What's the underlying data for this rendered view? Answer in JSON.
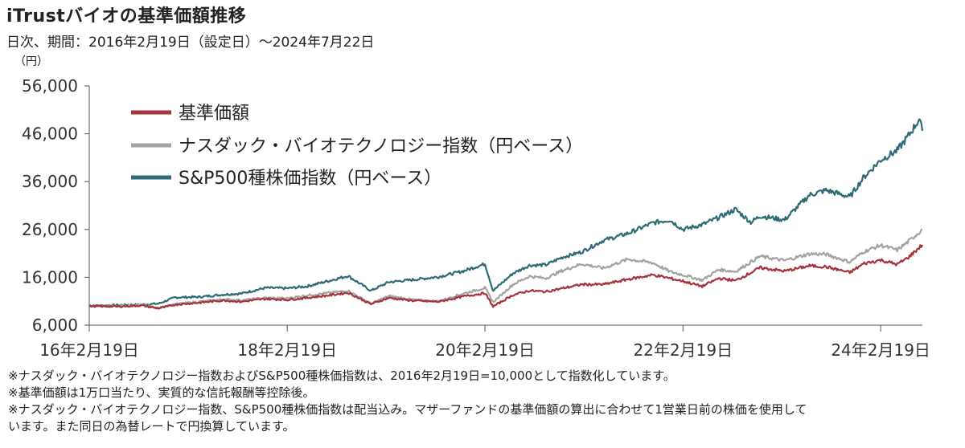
{
  "header": {
    "title": "iTrustバイオの基準価額推移",
    "subtitle": "日次、期間：2016年2月19日（設定日）～2024年7月22日",
    "unit": "（円）"
  },
  "chart_data": {
    "type": "line",
    "x_tick_labels": [
      "16年2月19日",
      "18年2月19日",
      "20年2月19日",
      "22年2月19日",
      "24年2月19日"
    ],
    "x_ticks": [
      "2016-02-19",
      "2018-02-19",
      "2020-02-19",
      "2022-02-19",
      "2024-02-19"
    ],
    "x_range": [
      "2016-02-19",
      "2024-07-22"
    ],
    "ylim": [
      6000,
      56000
    ],
    "y_ticks": [
      6000,
      16000,
      26000,
      36000,
      46000,
      56000
    ],
    "y_tick_labels": [
      "6,000",
      "16,000",
      "26,000",
      "36,000",
      "46,000",
      "56,000"
    ],
    "legend_position": "top-left",
    "grid": false,
    "series": [
      {
        "name": "基準価額",
        "color": "#a5333b",
        "points": [
          [
            "2016-02-19",
            10000
          ],
          [
            "2016-06-01",
            9900
          ],
          [
            "2016-09-01",
            10100
          ],
          [
            "2016-11-01",
            9500
          ],
          [
            "2017-01-01",
            10300
          ],
          [
            "2017-04-01",
            10700
          ],
          [
            "2017-07-01",
            11200
          ],
          [
            "2017-09-01",
            10900
          ],
          [
            "2017-12-01",
            11500
          ],
          [
            "2018-02-19",
            11300
          ],
          [
            "2018-05-01",
            11700
          ],
          [
            "2018-08-01",
            12300
          ],
          [
            "2018-10-01",
            12800
          ],
          [
            "2018-12-25",
            10400
          ],
          [
            "2019-03-01",
            11700
          ],
          [
            "2019-06-01",
            11100
          ],
          [
            "2019-09-01",
            10900
          ],
          [
            "2019-12-01",
            12000
          ],
          [
            "2020-02-19",
            12700
          ],
          [
            "2020-03-20",
            9900
          ],
          [
            "2020-06-01",
            12300
          ],
          [
            "2020-08-01",
            13200
          ],
          [
            "2020-10-01",
            13000
          ],
          [
            "2020-12-01",
            13700
          ],
          [
            "2021-02-10",
            14500
          ],
          [
            "2021-05-01",
            14500
          ],
          [
            "2021-08-01",
            15600
          ],
          [
            "2021-11-01",
            16500
          ],
          [
            "2022-01-01",
            15800
          ],
          [
            "2022-02-19",
            15200
          ],
          [
            "2022-05-01",
            14100
          ],
          [
            "2022-07-01",
            15800
          ],
          [
            "2022-09-01",
            15300
          ],
          [
            "2022-12-01",
            18000
          ],
          [
            "2023-03-01",
            17300
          ],
          [
            "2023-06-01",
            18400
          ],
          [
            "2023-08-01",
            18200
          ],
          [
            "2023-10-28",
            17000
          ],
          [
            "2023-12-20",
            18900
          ],
          [
            "2024-02-19",
            19600
          ],
          [
            "2024-04-20",
            18700
          ],
          [
            "2024-06-01",
            20200
          ],
          [
            "2024-07-22",
            22800
          ]
        ]
      },
      {
        "name": "ナスダック・バイオテクノロジー指数（円ベース）",
        "color": "#a3a3a3",
        "points": [
          [
            "2016-02-19",
            10000
          ],
          [
            "2016-06-01",
            10000
          ],
          [
            "2016-09-01",
            10200
          ],
          [
            "2016-11-01",
            9600
          ],
          [
            "2017-01-01",
            10400
          ],
          [
            "2017-04-01",
            10900
          ],
          [
            "2017-07-01",
            11400
          ],
          [
            "2017-09-01",
            11200
          ],
          [
            "2017-12-01",
            11700
          ],
          [
            "2018-02-19",
            11600
          ],
          [
            "2018-05-01",
            12200
          ],
          [
            "2018-08-01",
            12800
          ],
          [
            "2018-10-01",
            13200
          ],
          [
            "2018-12-25",
            10500
          ],
          [
            "2019-03-01",
            12100
          ],
          [
            "2019-06-01",
            11300
          ],
          [
            "2019-09-01",
            11000
          ],
          [
            "2019-12-01",
            12600
          ],
          [
            "2020-02-19",
            13800
          ],
          [
            "2020-03-20",
            10800
          ],
          [
            "2020-06-01",
            14500
          ],
          [
            "2020-08-01",
            16200
          ],
          [
            "2020-10-01",
            15800
          ],
          [
            "2020-12-01",
            17400
          ],
          [
            "2021-02-10",
            18800
          ],
          [
            "2021-05-01",
            17900
          ],
          [
            "2021-08-01",
            19800
          ],
          [
            "2021-11-01",
            19000
          ],
          [
            "2022-01-01",
            17200
          ],
          [
            "2022-02-19",
            16500
          ],
          [
            "2022-05-01",
            15400
          ],
          [
            "2022-07-01",
            17600
          ],
          [
            "2022-09-01",
            17200
          ],
          [
            "2022-12-01",
            20400
          ],
          [
            "2023-03-01",
            19500
          ],
          [
            "2023-06-01",
            20900
          ],
          [
            "2023-08-01",
            20800
          ],
          [
            "2023-10-28",
            19200
          ],
          [
            "2023-12-20",
            21400
          ],
          [
            "2024-02-19",
            22700
          ],
          [
            "2024-04-20",
            21700
          ],
          [
            "2024-06-01",
            23500
          ],
          [
            "2024-07-22",
            26000
          ]
        ]
      },
      {
        "name": "S&P500種株価指数（円ベース）",
        "color": "#2f6b74",
        "points": [
          [
            "2016-02-19",
            10000
          ],
          [
            "2016-06-01",
            10200
          ],
          [
            "2016-09-01",
            10300
          ],
          [
            "2016-11-01",
            10500
          ],
          [
            "2017-01-01",
            11800
          ],
          [
            "2017-04-01",
            11900
          ],
          [
            "2017-07-01",
            12400
          ],
          [
            "2017-09-01",
            12600
          ],
          [
            "2017-12-01",
            13800
          ],
          [
            "2018-02-19",
            13700
          ],
          [
            "2018-05-01",
            14100
          ],
          [
            "2018-08-01",
            15400
          ],
          [
            "2018-10-01",
            16300
          ],
          [
            "2018-12-25",
            13200
          ],
          [
            "2019-03-01",
            15000
          ],
          [
            "2019-06-01",
            15500
          ],
          [
            "2019-09-01",
            16100
          ],
          [
            "2019-12-01",
            17300
          ],
          [
            "2020-02-19",
            18800
          ],
          [
            "2020-03-20",
            13200
          ],
          [
            "2020-06-01",
            16800
          ],
          [
            "2020-08-01",
            18500
          ],
          [
            "2020-10-01",
            18600
          ],
          [
            "2020-12-01",
            20200
          ],
          [
            "2021-02-10",
            21300
          ],
          [
            "2021-05-01",
            23700
          ],
          [
            "2021-08-01",
            25200
          ],
          [
            "2021-11-01",
            27400
          ],
          [
            "2022-01-01",
            28000
          ],
          [
            "2022-02-19",
            26000
          ],
          [
            "2022-05-01",
            27000
          ],
          [
            "2022-07-01",
            28500
          ],
          [
            "2022-09-01",
            30200
          ],
          [
            "2022-10-28",
            27500
          ],
          [
            "2022-12-01",
            28800
          ],
          [
            "2023-03-01",
            28000
          ],
          [
            "2023-06-01",
            33200
          ],
          [
            "2023-08-01",
            34200
          ],
          [
            "2023-10-28",
            32800
          ],
          [
            "2023-12-20",
            37000
          ],
          [
            "2024-02-19",
            40500
          ],
          [
            "2024-04-20",
            42500
          ],
          [
            "2024-06-01",
            45600
          ],
          [
            "2024-07-10",
            49000
          ],
          [
            "2024-07-22",
            46600
          ]
        ]
      }
    ]
  },
  "notes": [
    "※ナスダック・バイオテクノロジー指数およびS&P500種株価指数は、2016年2月19日=10,000として指数化しています。",
    "※基準価額は1万口当たり、実質的な信託報酬等控除後。",
    "※ナスダック・バイオテクノロジー指数、S&P500種株価指数は配当込み。マザーファンドの基準価額の算出に合わせて1営業日前の株価を使用して",
    "います。また同日の為替レートで円換算しています。"
  ]
}
